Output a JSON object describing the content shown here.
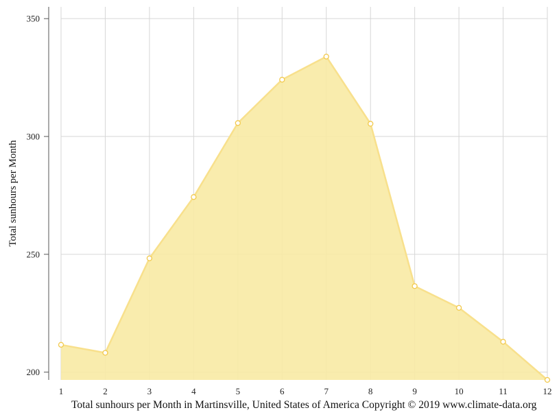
{
  "chart_data": {
    "type": "area",
    "x": [
      1,
      2,
      3,
      4,
      5,
      6,
      7,
      8,
      9,
      10,
      11,
      12
    ],
    "x_tick_labels": [
      "1",
      "2",
      "3",
      "4",
      "5",
      "6",
      "7",
      "8",
      "9",
      "10",
      "11",
      "12"
    ],
    "y_ticks": [
      200,
      250,
      300,
      350
    ],
    "y_tick_labels": [
      "200",
      "250",
      "300",
      "350"
    ],
    "series": [
      {
        "values": [
          211.6,
          208.2,
          248.3,
          274.3,
          305.7,
          324.1,
          333.9,
          305.4,
          236.5,
          227.3,
          212.9,
          196.7
        ]
      }
    ],
    "ylabel": "Total sunhours per Month",
    "xlabel": "",
    "ylim": [
      196.7,
      355
    ],
    "xlim": [
      1,
      12
    ],
    "grid": true,
    "fill_color": "#f8eaa4",
    "line_color": "#f8e08c",
    "marker_stroke": "#f2c94c",
    "caption": "Total sunhours per Month in Martinsville, United States of America Copyright © 2019 www.climate-data.org"
  }
}
